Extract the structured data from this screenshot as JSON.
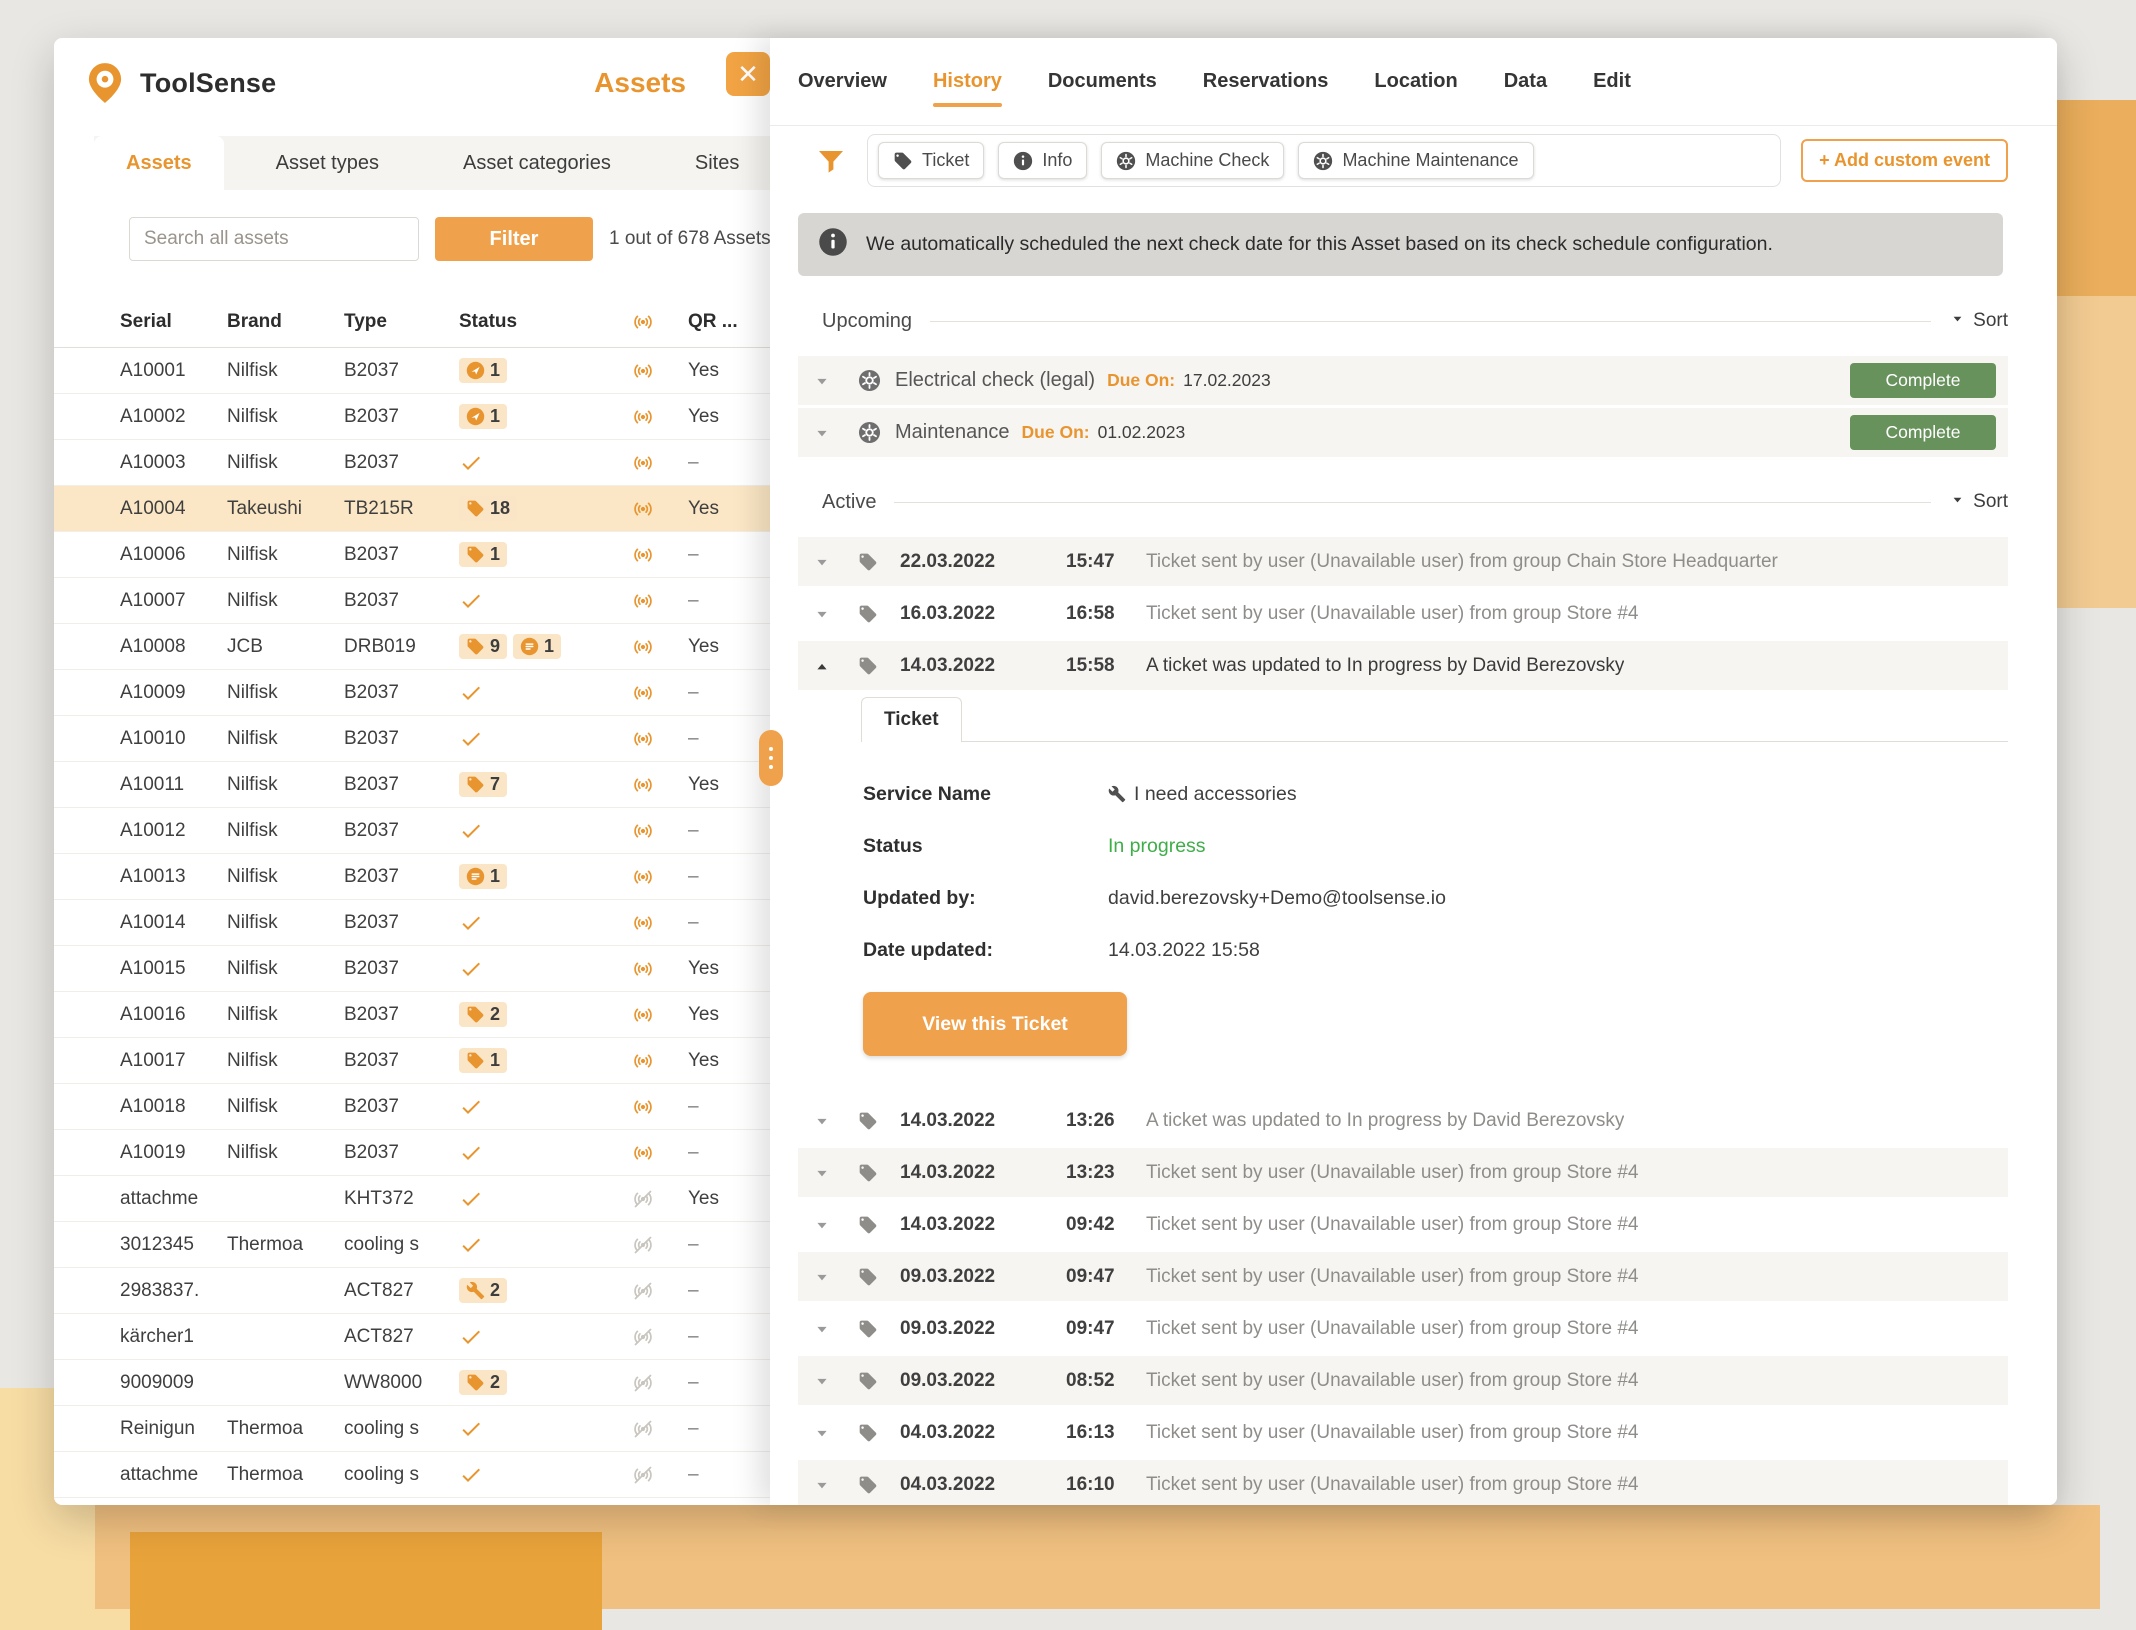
{
  "colors": {
    "accent": "#E8952F",
    "accent_button": "#F0A14B",
    "badge_bg": "#FAE6C6",
    "row_highlight": "#FBE7C5",
    "complete_green": "#67925C",
    "status_green": "#3FAE49",
    "banner_bg": "#D8D6D3",
    "muted_icon": "#8F8D8A",
    "dark_icon": "#565656",
    "offline_icon": "#C9C5BF"
  },
  "window": {
    "left_panel": {
      "brand": "ToolSense",
      "title": "Assets",
      "close_glyph": "✕",
      "tabs": [
        {
          "label": "Assets",
          "active": true
        },
        {
          "label": "Asset types",
          "active": false
        },
        {
          "label": "Asset categories",
          "active": false
        },
        {
          "label": "Sites",
          "active": false
        }
      ],
      "search": {
        "placeholder": "Search all assets"
      },
      "filter_button": "Filter",
      "result_count": "1 out of 678 Assets",
      "table": {
        "columns": [
          "Serial",
          "Brand",
          "Type",
          "Status",
          "signal-icon",
          "QR ..."
        ],
        "rows": [
          {
            "serial": "A10001",
            "brand": "Nilfisk",
            "type": "B2037",
            "badges": [
              {
                "icon": "send-icon",
                "count": "1"
              }
            ],
            "signal": true,
            "qr": "Yes"
          },
          {
            "serial": "A10002",
            "brand": "Nilfisk",
            "type": "B2037",
            "badges": [
              {
                "icon": "send-icon",
                "count": "1"
              }
            ],
            "signal": true,
            "qr": "Yes"
          },
          {
            "serial": "A10003",
            "brand": "Nilfisk",
            "type": "B2037",
            "badges": [
              {
                "icon": "check-icon"
              }
            ],
            "signal": true,
            "qr": "–"
          },
          {
            "serial": "A10004",
            "brand": "Takeushi",
            "type": "TB215R",
            "badges": [
              {
                "icon": "tag-icon",
                "count": "18"
              }
            ],
            "signal": true,
            "qr": "Yes",
            "highlight": true
          },
          {
            "serial": "A10006",
            "brand": "Nilfisk",
            "type": "B2037",
            "badges": [
              {
                "icon": "tag-icon",
                "count": "1"
              }
            ],
            "signal": true,
            "qr": "–"
          },
          {
            "serial": "A10007",
            "brand": "Nilfisk",
            "type": "B2037",
            "badges": [
              {
                "icon": "check-icon"
              }
            ],
            "signal": true,
            "qr": "–"
          },
          {
            "serial": "A10008",
            "brand": "JCB",
            "type": "DRB019",
            "badges": [
              {
                "icon": "tag-icon",
                "count": "9"
              },
              {
                "icon": "chat-icon",
                "count": "1"
              }
            ],
            "signal": true,
            "qr": "Yes"
          },
          {
            "serial": "A10009",
            "brand": "Nilfisk",
            "type": "B2037",
            "badges": [
              {
                "icon": "check-icon"
              }
            ],
            "signal": true,
            "qr": "–"
          },
          {
            "serial": "A10010",
            "brand": "Nilfisk",
            "type": "B2037",
            "badges": [
              {
                "icon": "check-icon"
              }
            ],
            "signal": true,
            "qr": "–"
          },
          {
            "serial": "A10011",
            "brand": "Nilfisk",
            "type": "B2037",
            "badges": [
              {
                "icon": "tag-icon",
                "count": "7"
              }
            ],
            "signal": true,
            "qr": "Yes"
          },
          {
            "serial": "A10012",
            "brand": "Nilfisk",
            "type": "B2037",
            "badges": [
              {
                "icon": "check-icon"
              }
            ],
            "signal": true,
            "qr": "–"
          },
          {
            "serial": "A10013",
            "brand": "Nilfisk",
            "type": "B2037",
            "badges": [
              {
                "icon": "chat-icon",
                "count": "1"
              }
            ],
            "signal": true,
            "qr": "–"
          },
          {
            "serial": "A10014",
            "brand": "Nilfisk",
            "type": "B2037",
            "badges": [
              {
                "icon": "check-icon"
              }
            ],
            "signal": true,
            "qr": "–"
          },
          {
            "serial": "A10015",
            "brand": "Nilfisk",
            "type": "B2037",
            "badges": [
              {
                "icon": "check-icon"
              }
            ],
            "signal": true,
            "qr": "Yes"
          },
          {
            "serial": "A10016",
            "brand": "Nilfisk",
            "type": "B2037",
            "badges": [
              {
                "icon": "tag-icon",
                "count": "2"
              }
            ],
            "signal": true,
            "qr": "Yes"
          },
          {
            "serial": "A10017",
            "brand": "Nilfisk",
            "type": "B2037",
            "badges": [
              {
                "icon": "tag-icon",
                "count": "1"
              }
            ],
            "signal": true,
            "qr": "Yes"
          },
          {
            "serial": "A10018",
            "brand": "Nilfisk",
            "type": "B2037",
            "badges": [
              {
                "icon": "check-icon"
              }
            ],
            "signal": true,
            "qr": "–"
          },
          {
            "serial": "A10019",
            "brand": "Nilfisk",
            "type": "B2037",
            "badges": [
              {
                "icon": "check-icon"
              }
            ],
            "signal": true,
            "qr": "–"
          },
          {
            "serial": "attachme",
            "brand": "",
            "type": "KHT372",
            "badges": [
              {
                "icon": "check-icon"
              }
            ],
            "signal": false,
            "qr": "Yes"
          },
          {
            "serial": "3012345",
            "brand": "Thermoa",
            "type": "cooling s",
            "badges": [
              {
                "icon": "check-icon"
              }
            ],
            "signal": false,
            "qr": "–"
          },
          {
            "serial": "2983837.",
            "brand": "",
            "type": "ACT827",
            "badges": [
              {
                "icon": "wrench-icon",
                "count": "2"
              }
            ],
            "signal": false,
            "qr": "–"
          },
          {
            "serial": "kärcher1",
            "brand": "",
            "type": "ACT827",
            "badges": [
              {
                "icon": "check-icon"
              }
            ],
            "signal": false,
            "qr": "–"
          },
          {
            "serial": "9009009",
            "brand": "",
            "type": "WW8000",
            "badges": [
              {
                "icon": "tag-icon",
                "count": "2"
              }
            ],
            "signal": false,
            "qr": "–"
          },
          {
            "serial": "Reinigun",
            "brand": "Thermoa",
            "type": "cooling s",
            "badges": [
              {
                "icon": "check-icon"
              }
            ],
            "signal": false,
            "qr": "–"
          },
          {
            "serial": "attachme",
            "brand": "Thermoa",
            "type": "cooling s",
            "badges": [
              {
                "icon": "check-icon"
              }
            ],
            "signal": false,
            "qr": "–"
          }
        ]
      }
    },
    "detail_panel": {
      "tabs": [
        {
          "label": "Overview",
          "active": false
        },
        {
          "label": "History",
          "active": true
        },
        {
          "label": "Documents",
          "active": false
        },
        {
          "label": "Reservations",
          "active": false
        },
        {
          "label": "Location",
          "active": false
        },
        {
          "label": "Data",
          "active": false
        },
        {
          "label": "Edit",
          "active": false
        }
      ],
      "filters": {
        "chips": [
          {
            "icon": "tag-icon",
            "label": "Ticket"
          },
          {
            "icon": "info-icon",
            "label": "Info"
          },
          {
            "icon": "gear-icon",
            "label": "Machine Check"
          },
          {
            "icon": "gear-icon",
            "label": "Machine Maintenance"
          }
        ],
        "add_button": "+ Add custom event"
      },
      "banner": {
        "text": "We automatically scheduled the next check date for this Asset based on its check schedule configuration."
      },
      "upcoming": {
        "title": "Upcoming",
        "sort_label": "Sort",
        "items": [
          {
            "icon": "gear-icon",
            "title": "Electrical check (legal)",
            "due_label": "Due On:",
            "due_date": "17.02.2023",
            "action": "Complete"
          },
          {
            "icon": "gear-icon",
            "title": "Maintenance",
            "due_label": "Due On:",
            "due_date": "01.02.2023",
            "action": "Complete"
          }
        ]
      },
      "active": {
        "title": "Active",
        "sort_label": "Sort",
        "items": [
          {
            "date": "22.03.2022",
            "time": "15:47",
            "text": "Ticket sent by user (Unavailable user) from group Chain Store Headquarter"
          },
          {
            "date": "16.03.2022",
            "time": "16:58",
            "text": "Ticket sent by user (Unavailable user) from group Store #4"
          },
          {
            "date": "14.03.2022",
            "time": "15:58",
            "text": "A ticket was updated to In progress by David Berezovsky",
            "expanded": true
          },
          {
            "date": "14.03.2022",
            "time": "13:26",
            "text": "A ticket was updated to In progress by David Berezovsky"
          },
          {
            "date": "14.03.2022",
            "time": "13:23",
            "text": "Ticket sent by user (Unavailable user) from group Store #4"
          },
          {
            "date": "14.03.2022",
            "time": "09:42",
            "text": "Ticket sent by user (Unavailable user) from group Store #4"
          },
          {
            "date": "09.03.2022",
            "time": "09:47",
            "text": "Ticket sent by user (Unavailable user) from group Store #4"
          },
          {
            "date": "09.03.2022",
            "time": "09:47",
            "text": "Ticket sent by user (Unavailable user) from group Store #4"
          },
          {
            "date": "09.03.2022",
            "time": "08:52",
            "text": "Ticket sent by user (Unavailable user) from group Store #4"
          },
          {
            "date": "04.03.2022",
            "time": "16:13",
            "text": "Ticket sent by user (Unavailable user) from group Store #4"
          },
          {
            "date": "04.03.2022",
            "time": "16:10",
            "text": "Ticket sent by user (Unavailable user) from group Store #4"
          }
        ],
        "ticket_detail": {
          "tab_label": "Ticket",
          "fields": [
            {
              "label": "Service Name",
              "value": "I need accessories",
              "icon": "wrench-icon"
            },
            {
              "label": "Status",
              "value": "In progress",
              "status_color": "#3FAE49"
            },
            {
              "label": "Updated by:",
              "value": "david.berezovsky+Demo@toolsense.io"
            },
            {
              "label": "Date updated:",
              "value": "14.03.2022 15:58"
            }
          ],
          "button": "View this Ticket"
        }
      }
    }
  }
}
